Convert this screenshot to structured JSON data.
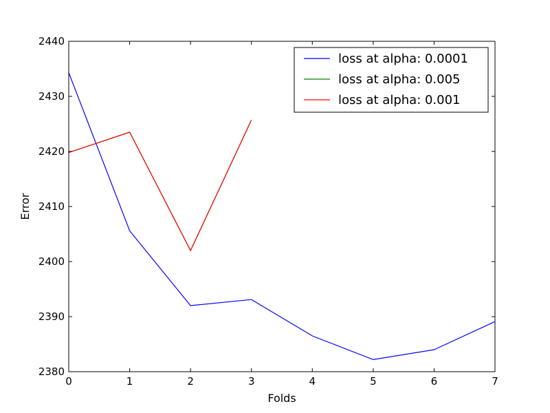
{
  "chart_data": {
    "type": "line",
    "xlabel": "Folds",
    "ylabel": "Error",
    "xlim": [
      0,
      7
    ],
    "ylim": [
      2380,
      2440
    ],
    "xticks": [
      0,
      1,
      2,
      3,
      4,
      5,
      6,
      7
    ],
    "yticks": [
      2380,
      2390,
      2400,
      2410,
      2420,
      2430,
      2440
    ],
    "grid": false,
    "legend_position": "top-right",
    "series": [
      {
        "name": "loss at alpha: 0.0001",
        "color": "#0000ff",
        "x": [
          0,
          1,
          2,
          3,
          4,
          5,
          6,
          7
        ],
        "y": [
          2434.3,
          2405.6,
          2392.0,
          2393.1,
          2386.5,
          2382.2,
          2384.0,
          2389.1
        ]
      },
      {
        "name": "loss at alpha: 0.005",
        "color": "#008000",
        "x": [
          0,
          1,
          2,
          3
        ],
        "y": [
          2419.8,
          2423.5,
          2402.0,
          2425.7
        ]
      },
      {
        "name": "loss at alpha: 0.001",
        "color": "#ff0000",
        "x": [
          0,
          1,
          2,
          3
        ],
        "y": [
          2419.8,
          2423.5,
          2402.0,
          2425.7
        ]
      }
    ]
  }
}
